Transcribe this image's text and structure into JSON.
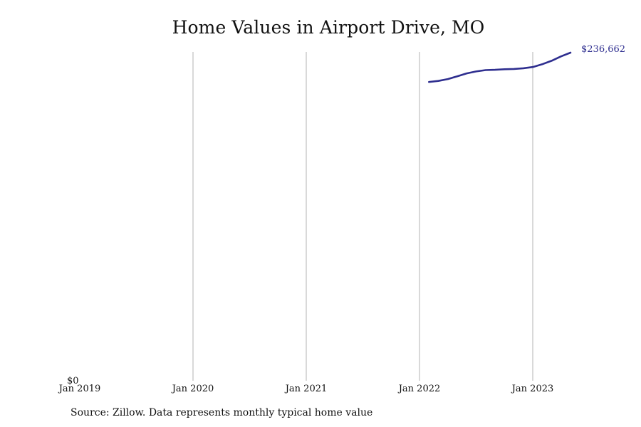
{
  "chart_data": {
    "type": "line",
    "title": "Home Values in Airport Drive, MO",
    "xlabel": "",
    "ylabel": "",
    "x_tick_labels": [
      "Jan 2019",
      "Jan 2020",
      "Jan 2021",
      "Jan 2022",
      "Jan 2023"
    ],
    "y_tick_labels": [
      "$0"
    ],
    "ylim": [
      0,
      236662
    ],
    "grid": "vertical",
    "line_color": "#2e2e8f",
    "grid_color": "#b3b3b3",
    "series": [
      {
        "x": [
          "2022-02",
          "2022-03",
          "2022-04",
          "2022-05",
          "2022-06",
          "2022-07",
          "2022-08",
          "2022-09",
          "2022-10",
          "2022-11",
          "2022-12",
          "2023-01",
          "2023-02",
          "2023-03",
          "2023-04",
          "2023-05"
        ],
        "values": [
          215500,
          216300,
          217600,
          219600,
          221700,
          223100,
          224100,
          224300,
          224700,
          224900,
          225400,
          226300,
          228300,
          230800,
          234000,
          236662
        ]
      }
    ],
    "end_label": "$236,662"
  },
  "source": "Source: Zillow. Data represents monthly typical home value"
}
